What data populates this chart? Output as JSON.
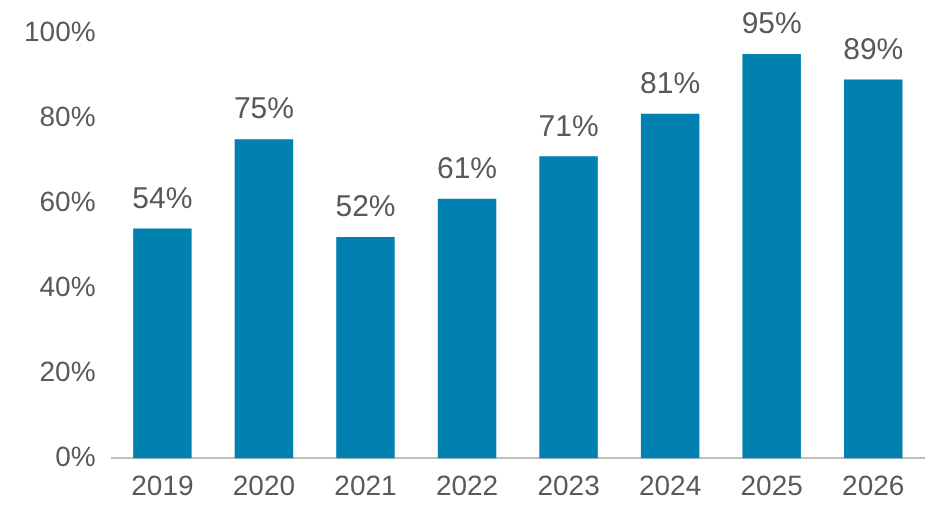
{
  "chart_data": {
    "type": "bar",
    "categories": [
      "2019",
      "2020",
      "2021",
      "2022",
      "2023",
      "2024",
      "2025",
      "2026"
    ],
    "values": [
      54,
      75,
      52,
      61,
      71,
      81,
      95,
      89
    ],
    "value_labels": [
      "54%",
      "75%",
      "52%",
      "61%",
      "71%",
      "81%",
      "95%",
      "89%"
    ],
    "color": "#0081b0",
    "ylim": [
      0,
      100
    ],
    "yticks": [
      {
        "value": 0,
        "label": "0%"
      },
      {
        "value": 20,
        "label": "20%"
      },
      {
        "value": 40,
        "label": "40%"
      },
      {
        "value": 60,
        "label": "60%"
      },
      {
        "value": 80,
        "label": "80%"
      },
      {
        "value": 100,
        "label": "100%"
      }
    ],
    "grid": false,
    "legend": false
  }
}
